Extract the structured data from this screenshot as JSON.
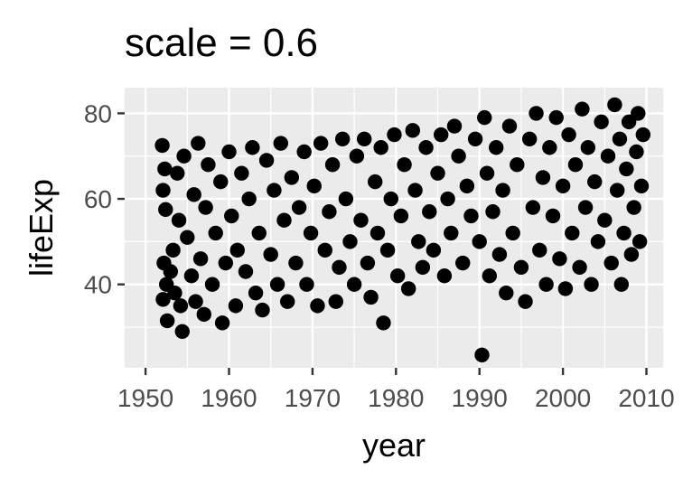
{
  "chart_data": {
    "type": "scatter",
    "title": "scale = 0.6",
    "xlabel": "year",
    "ylabel": "lifeExp",
    "xlim": [
      1947.5,
      2012
    ],
    "ylim": [
      20.5,
      86
    ],
    "x_ticks": [
      1950,
      1960,
      1970,
      1980,
      1990,
      2000,
      2010
    ],
    "x_tick_labels": [
      "1950",
      "1960",
      "1970",
      "1980",
      "1990",
      "2000",
      "2010"
    ],
    "y_ticks": [
      40,
      60,
      80
    ],
    "y_tick_labels": [
      "40",
      "60",
      "80"
    ],
    "grid": true,
    "legend": "none",
    "point_color": "#000000",
    "panel_background": "#ebebeb",
    "points": [
      [
        1952.0,
        72.5
      ],
      [
        1952.3,
        67.0
      ],
      [
        1952.1,
        62.0
      ],
      [
        1952.4,
        57.5
      ],
      [
        1952.2,
        45.0
      ],
      [
        1952.5,
        40.0
      ],
      [
        1952.1,
        36.5
      ],
      [
        1952.6,
        31.5
      ],
      [
        1953.0,
        43.0
      ],
      [
        1953.5,
        38.0
      ],
      [
        1953.3,
        48.0
      ],
      [
        1953.8,
        66.0
      ],
      [
        1954.0,
        55.0
      ],
      [
        1954.2,
        35.0
      ],
      [
        1954.4,
        29.0
      ],
      [
        1954.6,
        70.0
      ],
      [
        1955.0,
        51.0
      ],
      [
        1955.5,
        42.0
      ],
      [
        1955.8,
        61.0
      ],
      [
        1956.0,
        36.0
      ],
      [
        1956.3,
        73.0
      ],
      [
        1956.6,
        46.0
      ],
      [
        1957.0,
        33.0
      ],
      [
        1957.2,
        58.0
      ],
      [
        1957.5,
        68.0
      ],
      [
        1958.0,
        40.0
      ],
      [
        1958.4,
        52.0
      ],
      [
        1959.0,
        64.0
      ],
      [
        1959.2,
        31.0
      ],
      [
        1959.6,
        45.0
      ],
      [
        1960.0,
        71.0
      ],
      [
        1960.3,
        56.0
      ],
      [
        1960.8,
        35.0
      ],
      [
        1961.0,
        48.0
      ],
      [
        1961.5,
        66.0
      ],
      [
        1962.0,
        43.0
      ],
      [
        1962.4,
        60.0
      ],
      [
        1962.8,
        72.0
      ],
      [
        1963.2,
        38.0
      ],
      [
        1963.6,
        52.0
      ],
      [
        1964.0,
        34.0
      ],
      [
        1964.5,
        69.0
      ],
      [
        1965.0,
        47.0
      ],
      [
        1965.4,
        62.0
      ],
      [
        1965.8,
        40.0
      ],
      [
        1966.2,
        73.0
      ],
      [
        1966.6,
        55.0
      ],
      [
        1967.0,
        36.0
      ],
      [
        1967.5,
        65.0
      ],
      [
        1968.0,
        45.0
      ],
      [
        1968.4,
        58.0
      ],
      [
        1969.0,
        71.0
      ],
      [
        1969.3,
        40.0
      ],
      [
        1969.8,
        52.0
      ],
      [
        1970.2,
        63.0
      ],
      [
        1970.6,
        35.0
      ],
      [
        1971.0,
        73.0
      ],
      [
        1971.5,
        48.0
      ],
      [
        1972.0,
        57.0
      ],
      [
        1972.4,
        68.0
      ],
      [
        1972.8,
        36.0
      ],
      [
        1973.2,
        44.0
      ],
      [
        1973.6,
        74.0
      ],
      [
        1974.0,
        60.0
      ],
      [
        1974.5,
        50.0
      ],
      [
        1975.0,
        40.0
      ],
      [
        1975.3,
        70.0
      ],
      [
        1975.8,
        55.0
      ],
      [
        1976.2,
        74.0
      ],
      [
        1976.6,
        45.0
      ],
      [
        1977.0,
        37.0
      ],
      [
        1977.5,
        64.0
      ],
      [
        1977.8,
        52.0
      ],
      [
        1978.2,
        72.0
      ],
      [
        1978.5,
        31.0
      ],
      [
        1979.0,
        48.0
      ],
      [
        1979.4,
        60.0
      ],
      [
        1979.8,
        75.0
      ],
      [
        1980.2,
        42.0
      ],
      [
        1980.6,
        56.0
      ],
      [
        1981.0,
        68.0
      ],
      [
        1981.5,
        39.0
      ],
      [
        1982.0,
        76.0
      ],
      [
        1982.3,
        62.0
      ],
      [
        1982.7,
        50.0
      ],
      [
        1983.2,
        44.0
      ],
      [
        1983.6,
        72.0
      ],
      [
        1984.0,
        57.0
      ],
      [
        1984.5,
        48.0
      ],
      [
        1985.0,
        66.0
      ],
      [
        1985.4,
        75.0
      ],
      [
        1985.8,
        42.0
      ],
      [
        1986.2,
        60.0
      ],
      [
        1986.6,
        52.0
      ],
      [
        1987.0,
        77.0
      ],
      [
        1987.5,
        70.0
      ],
      [
        1988.0,
        45.0
      ],
      [
        1988.5,
        63.0
      ],
      [
        1989.0,
        56.0
      ],
      [
        1989.5,
        74.0
      ],
      [
        1990.0,
        50.0
      ],
      [
        1990.3,
        23.5
      ],
      [
        1990.6,
        79.0
      ],
      [
        1990.9,
        66.0
      ],
      [
        1991.2,
        42.0
      ],
      [
        1991.6,
        57.0
      ],
      [
        1992.0,
        72.0
      ],
      [
        1992.4,
        47.0
      ],
      [
        1992.8,
        62.0
      ],
      [
        1993.2,
        38.0
      ],
      [
        1993.6,
        77.0
      ],
      [
        1994.0,
        52.0
      ],
      [
        1994.5,
        68.0
      ],
      [
        1995.0,
        44.0
      ],
      [
        1995.5,
        36.0
      ],
      [
        1996.0,
        74.0
      ],
      [
        1996.4,
        58.0
      ],
      [
        1996.8,
        80.0
      ],
      [
        1997.2,
        48.0
      ],
      [
        1997.6,
        65.0
      ],
      [
        1998.0,
        40.0
      ],
      [
        1998.4,
        72.0
      ],
      [
        1998.8,
        56.0
      ],
      [
        1999.2,
        79.0
      ],
      [
        1999.6,
        46.0
      ],
      [
        2000.0,
        63.0
      ],
      [
        2000.3,
        39.0
      ],
      [
        2000.7,
        75.0
      ],
      [
        2001.1,
        52.0
      ],
      [
        2001.5,
        68.0
      ],
      [
        2002.0,
        44.0
      ],
      [
        2002.3,
        81.0
      ],
      [
        2002.7,
        58.0
      ],
      [
        2003.0,
        72.0
      ],
      [
        2003.4,
        40.0
      ],
      [
        2003.8,
        64.0
      ],
      [
        2004.2,
        50.0
      ],
      [
        2004.6,
        78.0
      ],
      [
        2005.0,
        55.0
      ],
      [
        2005.4,
        70.0
      ],
      [
        2005.8,
        45.0
      ],
      [
        2006.2,
        82.0
      ],
      [
        2006.5,
        62.0
      ],
      [
        2006.8,
        74.0
      ],
      [
        2007.0,
        40.0
      ],
      [
        2007.3,
        52.0
      ],
      [
        2007.6,
        67.0
      ],
      [
        2007.9,
        78.0
      ],
      [
        2008.2,
        47.0
      ],
      [
        2008.5,
        58.0
      ],
      [
        2008.8,
        71.0
      ],
      [
        2009.0,
        80.0
      ],
      [
        2009.2,
        50.0
      ],
      [
        2009.4,
        63.0
      ],
      [
        2009.6,
        75.0
      ]
    ]
  }
}
